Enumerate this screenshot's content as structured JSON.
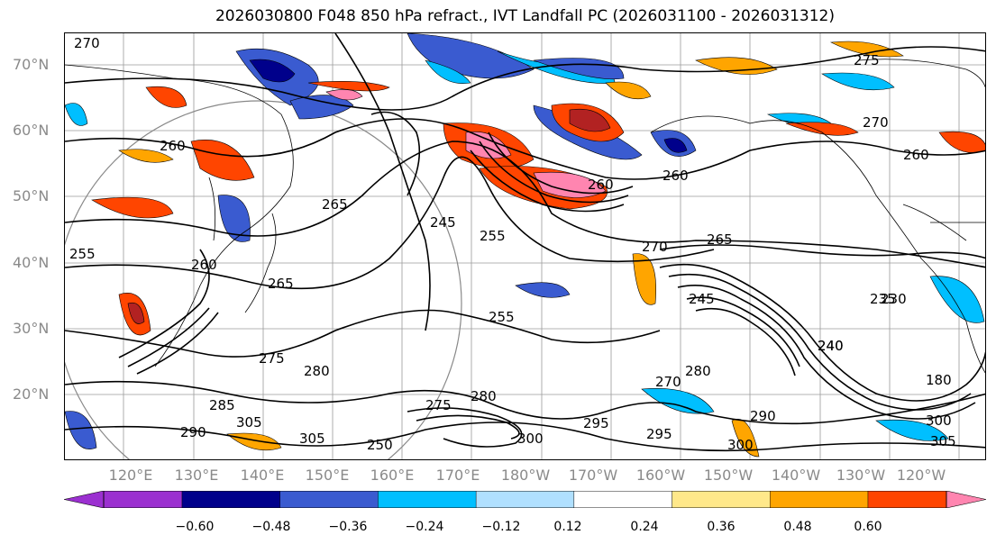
{
  "title": "2026030800 F048 850 hPa refract., IVT Landfall PC (2026031100 - 2026031312)",
  "lat_labels": [
    "70°N",
    "60°N",
    "50°N",
    "40°N",
    "30°N",
    "20°N"
  ],
  "lon_labels": [
    "120°E",
    "130°E",
    "140°E",
    "150°E",
    "160°E",
    "170°E",
    "180°W",
    "170°W",
    "160°W",
    "150°W",
    "140°W",
    "130°W",
    "120°W"
  ],
  "contour_labels": [
    "270",
    "260",
    "275",
    "270",
    "260",
    "260",
    "260",
    "265",
    "245",
    "255",
    "270",
    "265",
    "255",
    "260",
    "265",
    "230",
    "240",
    "275",
    "280",
    "285",
    "290",
    "305",
    "305",
    "275",
    "280",
    "300",
    "295",
    "270",
    "280",
    "245",
    "290",
    "300",
    "295",
    "300",
    "305",
    "250",
    "235",
    "240",
    "180",
    "255"
  ],
  "colorbar": {
    "colors": [
      "#9b30d0",
      "#00008b",
      "#3a5bd0",
      "#00bfff",
      "#b0e0ff",
      "#ffffff",
      "#ffe88a",
      "#ffa500",
      "#ff4500",
      "#b22222",
      "#ff85b0"
    ],
    "ticks": [
      "−0.60",
      "−0.48",
      "−0.36",
      "−0.24",
      "−0.12",
      "0.12",
      "0.24",
      "0.36",
      "0.48",
      "0.60"
    ]
  }
}
